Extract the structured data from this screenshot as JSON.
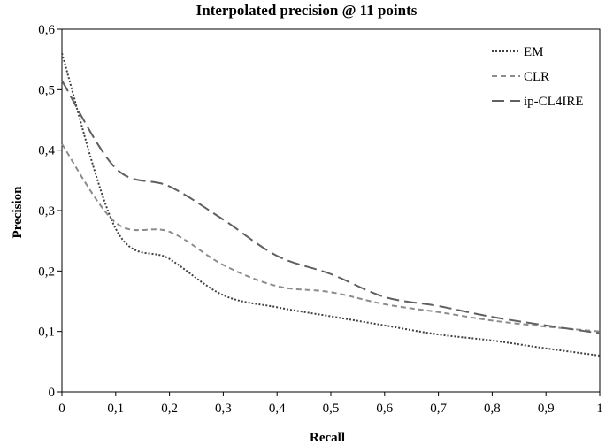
{
  "chart_data": {
    "type": "line",
    "title": "Interpolated precision @ 11 points",
    "xlabel": "Recall",
    "ylabel": "Precision",
    "xlim": [
      0,
      1
    ],
    "ylim": [
      0,
      0.6
    ],
    "x_ticks": [
      "0",
      "0,1",
      "0,2",
      "0,3",
      "0,4",
      "0,5",
      "0,6",
      "0,7",
      "0,8",
      "0,9",
      "1"
    ],
    "y_ticks": [
      "0",
      "0,1",
      "0,2",
      "0,3",
      "0,4",
      "0,5",
      "0,6"
    ],
    "grid": false,
    "legend_position": "top-right",
    "series": [
      {
        "name": "EM",
        "color": "#404040",
        "dash": "dotted",
        "x": [
          0,
          0.1,
          0.2,
          0.3,
          0.4,
          0.5,
          0.6,
          0.7,
          0.8,
          0.9,
          1
        ],
        "y": [
          0.56,
          0.27,
          0.22,
          0.16,
          0.14,
          0.125,
          0.11,
          0.095,
          0.085,
          0.072,
          0.06
        ]
      },
      {
        "name": "CLR",
        "color": "#8c8c8c",
        "dash": "short-dash",
        "x": [
          0,
          0.1,
          0.2,
          0.3,
          0.4,
          0.5,
          0.6,
          0.7,
          0.8,
          0.9,
          1
        ],
        "y": [
          0.41,
          0.28,
          0.265,
          0.21,
          0.175,
          0.165,
          0.145,
          0.132,
          0.118,
          0.108,
          0.1
        ]
      },
      {
        "name": "ip-CL4IRE",
        "color": "#606060",
        "dash": "long-dash",
        "x": [
          0,
          0.1,
          0.2,
          0.3,
          0.4,
          0.5,
          0.6,
          0.7,
          0.8,
          0.9,
          1
        ],
        "y": [
          0.515,
          0.37,
          0.34,
          0.285,
          0.225,
          0.195,
          0.157,
          0.142,
          0.124,
          0.11,
          0.097
        ]
      }
    ]
  }
}
